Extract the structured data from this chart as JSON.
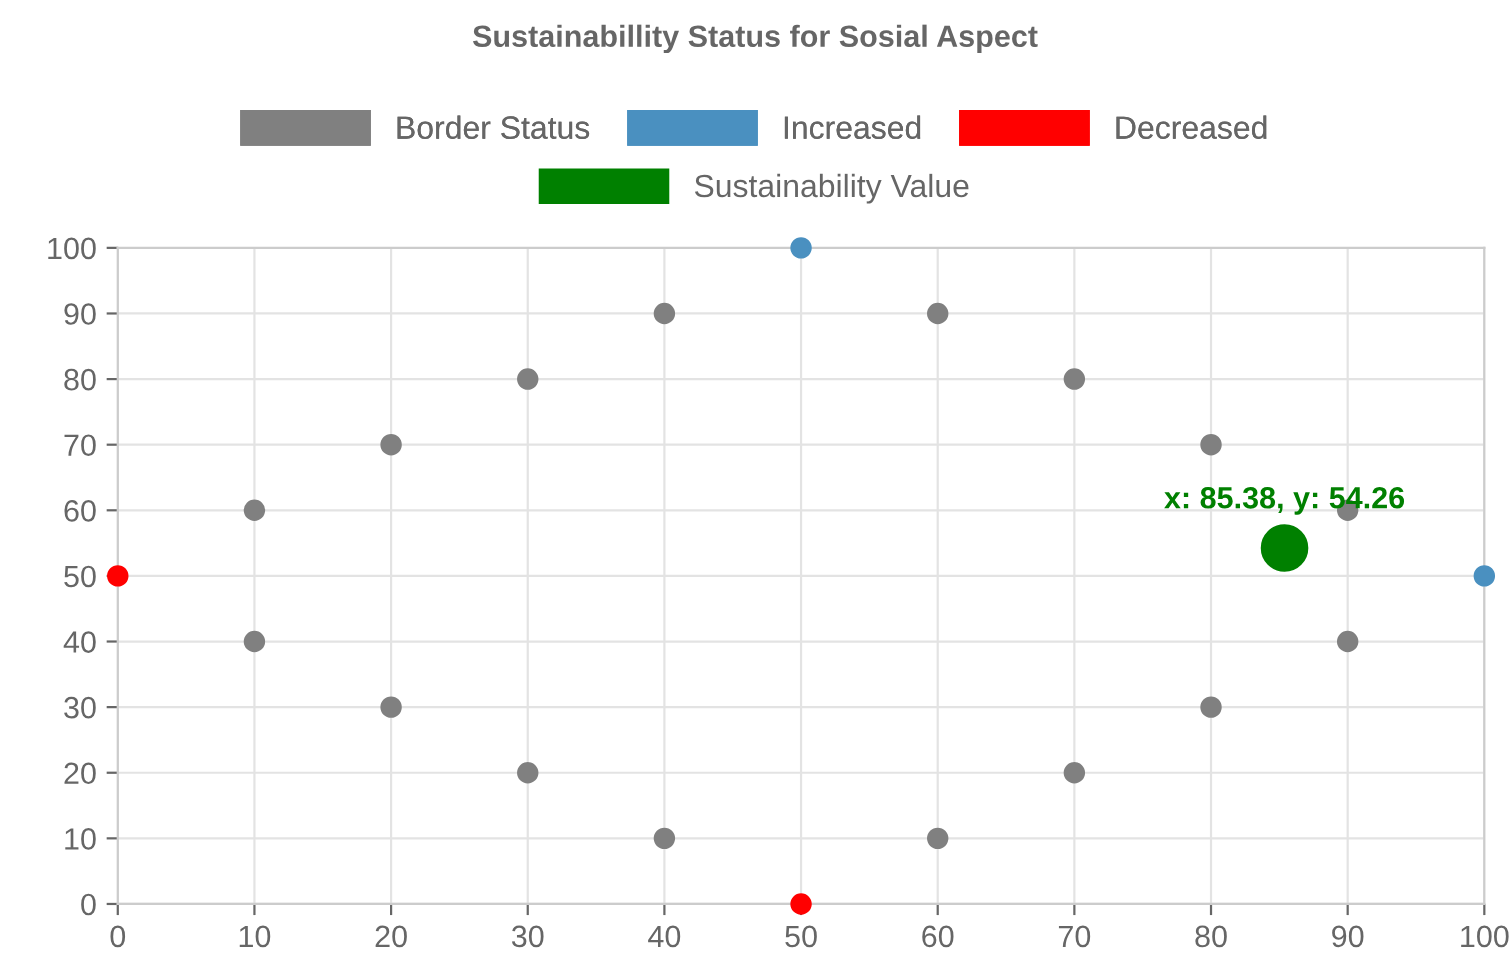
{
  "chart_data": {
    "type": "scatter",
    "title": "Sustainabillity Status for Sosial Aspect",
    "series": [
      {
        "name": "Border Status",
        "color": "#808080",
        "x": [
          10,
          10,
          20,
          20,
          30,
          30,
          40,
          40,
          60,
          60,
          70,
          70,
          80,
          80,
          90,
          90
        ],
        "values": [
          60,
          40,
          70,
          30,
          80,
          20,
          90,
          10,
          90,
          10,
          80,
          20,
          70,
          30,
          60,
          40
        ]
      },
      {
        "name": "Increased",
        "color": "#4a90c0",
        "x": [
          50,
          100
        ],
        "values": [
          100,
          50
        ]
      },
      {
        "name": "Decreased",
        "color": "#ff0000",
        "x": [
          0,
          50
        ],
        "values": [
          50,
          0
        ]
      },
      {
        "name": "Sustainability Value",
        "color": "#008000",
        "x": [
          85.38
        ],
        "values": [
          54.26
        ]
      }
    ],
    "annotations": [
      {
        "text": "x: 85.38, y: 54.26",
        "x": 85.38,
        "y": 54.26
      }
    ],
    "xlim": [
      0,
      100
    ],
    "ylim": [
      0,
      100
    ],
    "xticks": [
      0,
      10,
      20,
      30,
      40,
      50,
      60,
      70,
      80,
      90,
      100
    ],
    "yticks": [
      0,
      10,
      20,
      30,
      40,
      50,
      60,
      70,
      80,
      90,
      100
    ],
    "grid": true,
    "legend": "top",
    "marker": "circle"
  }
}
